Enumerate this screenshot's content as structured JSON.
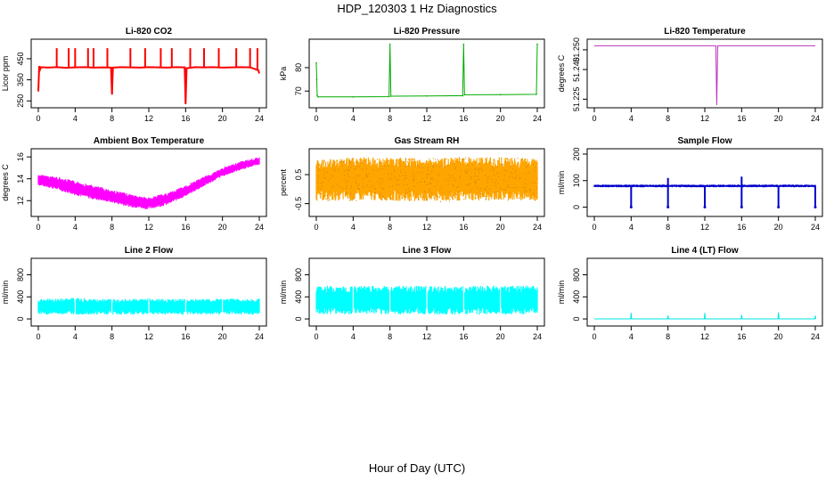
{
  "figure_title": "HDP_120303 1 Hz Diagnostics",
  "x_label": "Hour of Day (UTC)",
  "chart_data": [
    {
      "type": "line",
      "title": "Li-820 CO2",
      "ylabel": "Licor ppm",
      "color": "#ff0000",
      "xlim": [
        0,
        24
      ],
      "ylim": [
        230,
        530
      ],
      "yticks": [
        250,
        350,
        450
      ],
      "xticks": [
        0,
        4,
        8,
        12,
        16,
        20,
        24
      ],
      "series": [
        {
          "name": "CO2",
          "x": [
            0,
            0.1,
            0.2,
            0.3,
            1,
            2,
            3,
            4,
            5,
            6,
            7,
            7.9,
            8,
            8.1,
            9,
            10,
            11,
            12,
            13,
            14,
            15,
            15.9,
            16,
            16.1,
            17,
            18,
            19,
            20,
            21,
            22,
            23,
            23.9,
            24
          ],
          "y": [
            295,
            415,
            400,
            410,
            408,
            410,
            407,
            409,
            410,
            408,
            409,
            408,
            280,
            408,
            410,
            409,
            408,
            410,
            409,
            408,
            410,
            409,
            235,
            405,
            410,
            409,
            410,
            408,
            409,
            410,
            409,
            395,
            380
          ]
        },
        {
          "name": "spikes",
          "x": [
            2,
            3.3,
            4,
            5.4,
            6,
            7.5,
            10,
            11.6,
            13.3,
            14.5,
            16.5,
            18,
            19.6,
            21.5,
            23,
            23.8
          ],
          "y": [
            500,
            500,
            500,
            500,
            500,
            500,
            500,
            500,
            500,
            500,
            500,
            500,
            500,
            500,
            500,
            500
          ]
        }
      ]
    },
    {
      "type": "line",
      "title": "Li-820 Pressure",
      "ylabel": "kPa",
      "color": "#00aa00",
      "xlim": [
        0,
        24
      ],
      "ylim": [
        64,
        91
      ],
      "yticks": [
        70,
        80
      ],
      "xticks": [
        0,
        4,
        8,
        12,
        16,
        20,
        24
      ],
      "series": [
        {
          "name": "Pressure",
          "x": [
            0,
            0.05,
            0.1,
            0.2,
            4,
            7.9,
            8,
            8.1,
            12,
            15.9,
            16,
            16.1,
            20,
            23.9,
            24
          ],
          "y": [
            82,
            75,
            68,
            67.5,
            67.5,
            67.6,
            90,
            67.8,
            67.9,
            68,
            90,
            68.4,
            68.5,
            68.6,
            90
          ]
        }
      ]
    },
    {
      "type": "line",
      "title": "Li-820 Temperature",
      "ylabel": "degrees C",
      "color": "#bb33bb",
      "xlim": [
        0,
        24
      ],
      "ylim": [
        51.222,
        51.254
      ],
      "yticks": [
        51.225,
        51.24,
        51.25
      ],
      "ytick_labels": [
        "51.225",
        "51.240",
        "51.250"
      ],
      "xticks": [
        0,
        4,
        8,
        12,
        16,
        20,
        24
      ],
      "series": [
        {
          "name": "Temperature",
          "x": [
            0,
            13.2,
            13.3,
            13.4,
            24
          ],
          "y": [
            51.252,
            51.252,
            51.222,
            51.252,
            51.252
          ]
        }
      ]
    },
    {
      "type": "area",
      "title": "Ambient Box Temperature",
      "ylabel": "degrees C",
      "color": "#ff00ff",
      "xlim": [
        0,
        24
      ],
      "ylim": [
        10.8,
        16.5
      ],
      "yticks": [
        12,
        14
      ],
      "extra_tick_labels": [
        16
      ],
      "xticks": [
        0,
        4,
        8,
        12,
        16,
        20,
        24
      ],
      "x": [
        0,
        2,
        4,
        6,
        8,
        10,
        12,
        14,
        16,
        18,
        20,
        22,
        24
      ],
      "upper": [
        14.4,
        14.2,
        13.8,
        13.4,
        13.0,
        12.6,
        12.3,
        12.7,
        13.4,
        14.2,
        15.0,
        15.6,
        16.0
      ],
      "lower": [
        13.4,
        13.0,
        12.5,
        12.1,
        11.8,
        11.4,
        11.2,
        11.6,
        12.4,
        13.3,
        14.2,
        14.8,
        15.3
      ]
    },
    {
      "type": "area",
      "title": "Gas Stream RH",
      "ylabel": "percent",
      "color": "#ffa500",
      "xlim": [
        0,
        24
      ],
      "ylim": [
        -0.85,
        1.3
      ],
      "yticks": [
        -0.5,
        0.5
      ],
      "xticks": [
        0,
        4,
        8,
        12,
        16,
        20,
        24
      ],
      "x": [
        0,
        4,
        8,
        12,
        16,
        20,
        24
      ],
      "upper": [
        1.0,
        1.1,
        1.1,
        1.05,
        1.1,
        1.1,
        1.05
      ],
      "lower": [
        -0.4,
        -0.4,
        -0.4,
        -0.45,
        -0.4,
        -0.4,
        -0.4
      ]
    },
    {
      "type": "area",
      "title": "Sample Flow",
      "ylabel": "ml/min",
      "color": "#0000cc",
      "xlim": [
        0,
        24
      ],
      "ylim": [
        -25,
        210
      ],
      "yticks": [
        0,
        100,
        200
      ],
      "xticks": [
        0,
        4,
        8,
        12,
        16,
        20,
        24
      ],
      "x": [
        0,
        24
      ],
      "upper": [
        85,
        85
      ],
      "lower": [
        75,
        75
      ],
      "spike_hours": [
        4,
        8,
        12,
        16,
        20,
        24
      ],
      "spike_high": [
        80,
        110,
        80,
        115,
        80,
        80
      ],
      "spike_low": [
        0,
        0,
        0,
        0,
        0,
        0
      ]
    },
    {
      "type": "area",
      "title": "Line 2 Flow",
      "ylabel": "ml/min",
      "color": "#00ffff",
      "xlim": [
        0,
        24
      ],
      "ylim": [
        -80,
        1050
      ],
      "yticks": [
        0,
        400,
        800
      ],
      "xticks": [
        0,
        4,
        8,
        12,
        16,
        20,
        24
      ],
      "x": [
        0,
        4,
        8,
        12,
        16,
        20,
        24
      ],
      "upper": [
        360,
        380,
        360,
        370,
        360,
        370,
        370
      ],
      "lower": [
        80,
        80,
        80,
        80,
        80,
        80,
        80
      ],
      "gap_hours": [
        4,
        8,
        12,
        16,
        20
      ]
    },
    {
      "type": "area",
      "title": "Line 3 Flow",
      "ylabel": "ml/min",
      "color": "#00ffff",
      "xlim": [
        0,
        24
      ],
      "ylim": [
        -80,
        1050
      ],
      "yticks": [
        0,
        400,
        800
      ],
      "xticks": [
        0,
        4,
        8,
        12,
        16,
        20,
        24
      ],
      "x": [
        0,
        4,
        8,
        12,
        16,
        20,
        24
      ],
      "upper": [
        600,
        600,
        600,
        600,
        600,
        610,
        610
      ],
      "lower": [
        80,
        80,
        80,
        80,
        80,
        80,
        80
      ],
      "gap_hours": [
        4,
        8,
        12,
        16,
        20
      ]
    },
    {
      "type": "line",
      "title": "Line 4 (LT) Flow",
      "ylabel": "ml/min",
      "color": "#00e5e5",
      "xlim": [
        0,
        24
      ],
      "ylim": [
        -80,
        1050
      ],
      "yticks": [
        0,
        400,
        800
      ],
      "xticks": [
        0,
        4,
        8,
        12,
        16,
        20,
        24
      ],
      "series": [
        {
          "name": "Line 4",
          "x": [
            0,
            3.95,
            4,
            4.05,
            7.95,
            8,
            8.05,
            11.95,
            12,
            12.05,
            15.95,
            16,
            16.05,
            19.95,
            20,
            20.05,
            23.95,
            24,
            24.05
          ],
          "y": [
            0,
            0,
            110,
            0,
            0,
            60,
            0,
            0,
            110,
            0,
            0,
            70,
            0,
            0,
            120,
            0,
            0,
            60,
            0
          ]
        }
      ]
    }
  ]
}
